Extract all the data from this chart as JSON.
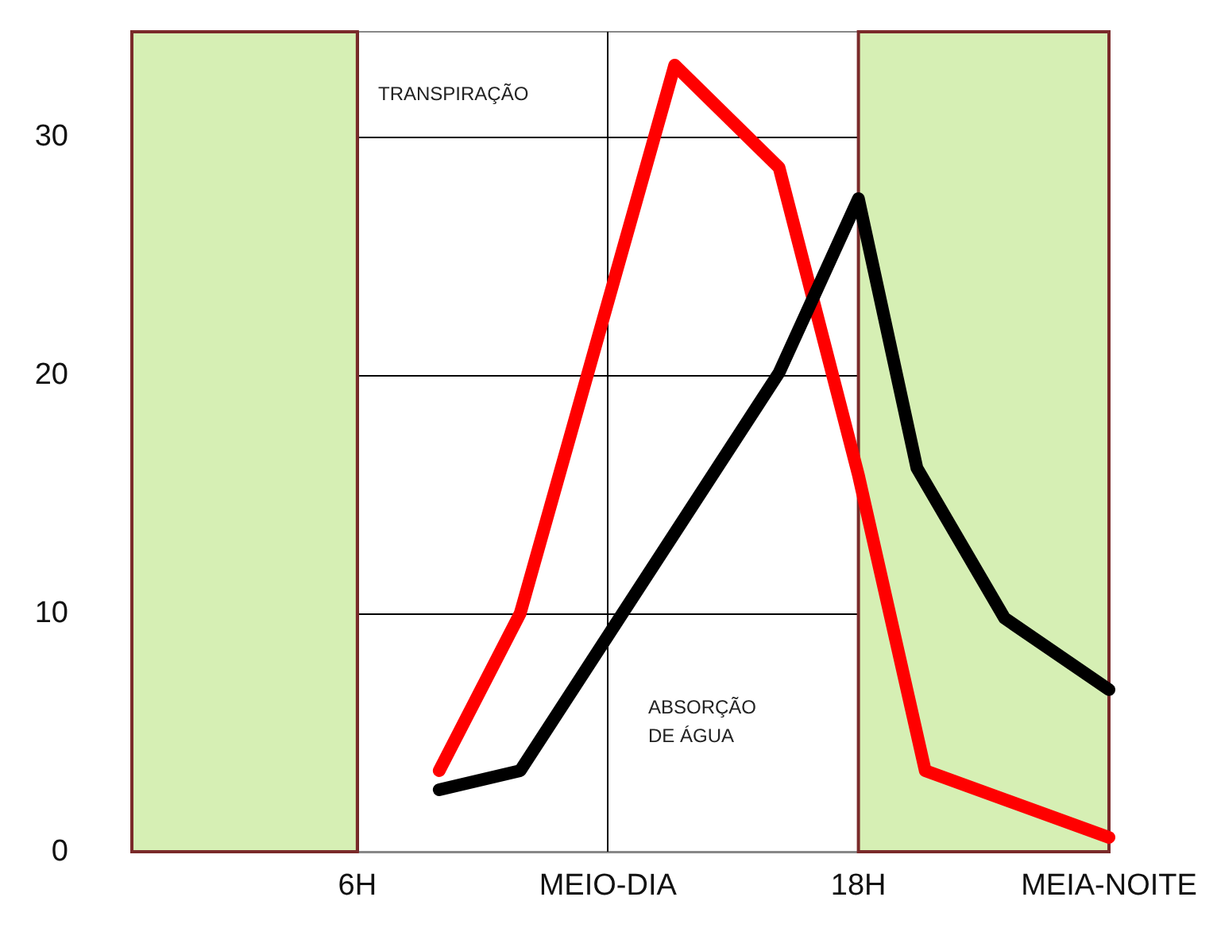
{
  "chart_data": {
    "type": "line",
    "xlim": [
      0.6,
      24
    ],
    "ylim": [
      0,
      34.4
    ],
    "xticks": [
      {
        "value": 6,
        "label": "6H"
      },
      {
        "value": 12,
        "label": "MEIO-DIA"
      },
      {
        "value": 18,
        "label": "18H"
      },
      {
        "value": 24,
        "label": "MEIA-NOITE"
      }
    ],
    "yticks": [
      0,
      10,
      20,
      30
    ],
    "series": [
      {
        "color": "#ff0000",
        "x": [
          7.96,
          9.9,
          13.6,
          16.1,
          18,
          19.6,
          24
        ],
        "values": [
          3.4,
          10,
          33,
          28.7,
          15.8,
          3.4,
          0.6
        ]
      },
      {
        "color": "#000000",
        "x": [
          7.96,
          9.9,
          16.1,
          18,
          19.4,
          21.5,
          24
        ],
        "values": [
          2.6,
          3.4,
          20.1,
          27.4,
          16.1,
          9.8,
          6.8
        ]
      }
    ],
    "bands": [
      {
        "axis": "x",
        "from": 0.6,
        "to": 6,
        "color": "#d6efb4"
      },
      {
        "axis": "x",
        "from": 18,
        "to": 24,
        "color": "#d6efb4"
      }
    ],
    "annotations": [
      "TRANSPIRAÇÃO",
      "ABSORÇÃO\nDE ÁGUA"
    ],
    "grid": true,
    "line_style": "solid"
  }
}
